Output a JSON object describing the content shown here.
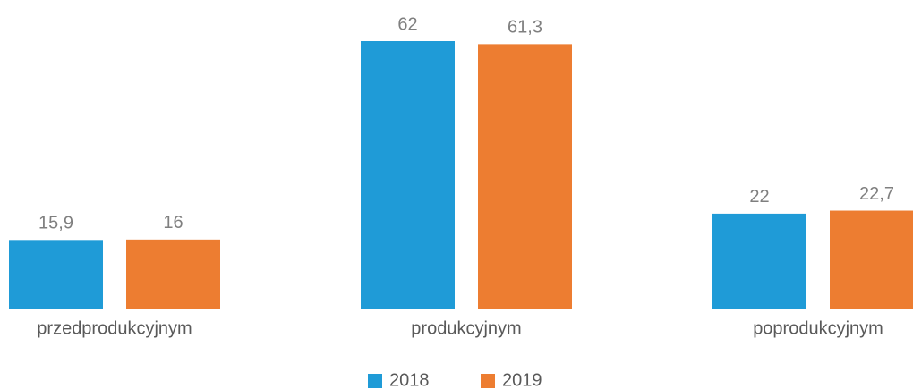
{
  "chart_data": {
    "type": "bar",
    "categories": [
      "przedprodukcyjnym",
      "produkcyjnym",
      "poprodukcyjnym"
    ],
    "series": [
      {
        "name": "2018",
        "color": "#1f9bd7",
        "values": [
          15.9,
          62,
          22
        ],
        "value_labels": [
          "15,9",
          "62",
          "22"
        ]
      },
      {
        "name": "2019",
        "color": "#ed7d31",
        "values": [
          16,
          61.3,
          22.7
        ],
        "value_labels": [
          "16",
          "61,3",
          "22,7"
        ]
      }
    ]
  }
}
